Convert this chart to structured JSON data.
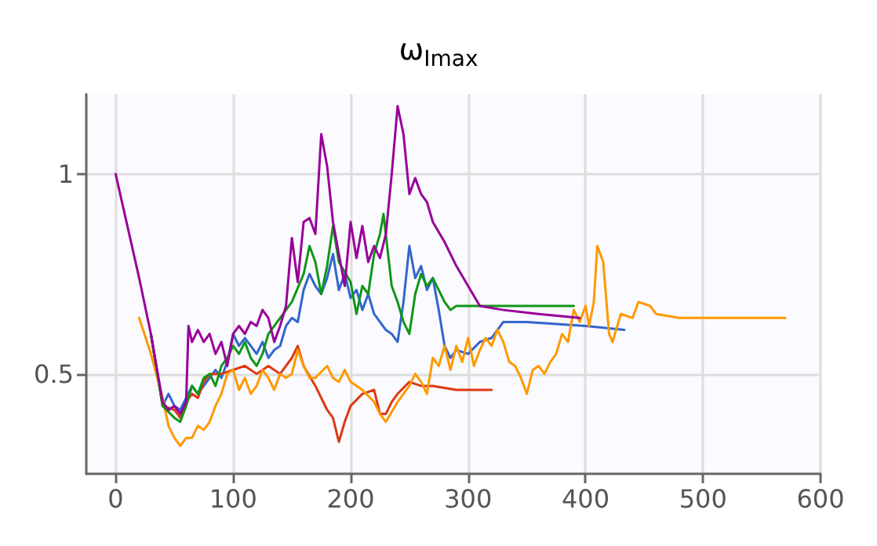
{
  "chart_data": {
    "type": "line",
    "title": "ω$_{Imax}$",
    "xlim": [
      -25,
      600
    ],
    "xticks": [
      0,
      100,
      200,
      300,
      400,
      500,
      600
    ],
    "ylim": [
      0.25,
      1.2
    ],
    "yticks": [
      0.5,
      1
    ],
    "grid": true,
    "marker": "none",
    "line_style": "solid",
    "series": [
      {
        "color": "#3366cc",
        "x": [
          30,
          40,
          45,
          50,
          55,
          60,
          65,
          70,
          75,
          80,
          85,
          90,
          95,
          100,
          105,
          110,
          115,
          120,
          125,
          130,
          135,
          140,
          145,
          150,
          155,
          160,
          165,
          170,
          175,
          180,
          185,
          190,
          195,
          200,
          205,
          210,
          215,
          220,
          225,
          230,
          235,
          240,
          245,
          250,
          255,
          260,
          265,
          270,
          275,
          280,
          285,
          290,
          300,
          310,
          320,
          330,
          350,
          400,
          433
        ],
        "values": [
          0.6,
          0.42,
          0.45,
          0.42,
          0.41,
          0.44,
          0.47,
          0.45,
          0.47,
          0.49,
          0.51,
          0.49,
          0.53,
          0.6,
          0.57,
          0.59,
          0.57,
          0.55,
          0.58,
          0.54,
          0.56,
          0.57,
          0.62,
          0.64,
          0.63,
          0.71,
          0.75,
          0.72,
          0.7,
          0.74,
          0.8,
          0.71,
          0.75,
          0.69,
          0.71,
          0.66,
          0.7,
          0.65,
          0.63,
          0.61,
          0.6,
          0.58,
          0.68,
          0.82,
          0.74,
          0.77,
          0.71,
          0.74,
          0.66,
          0.57,
          0.54,
          0.56,
          0.55,
          0.58,
          0.59,
          0.63,
          0.63,
          0.62,
          0.61
        ]
      },
      {
        "color": "#dc3912",
        "x": [
          30,
          40,
          50,
          55,
          60,
          65,
          70,
          75,
          80,
          90,
          100,
          110,
          120,
          130,
          140,
          150,
          155,
          160,
          170,
          180,
          185,
          190,
          195,
          200,
          210,
          220,
          225,
          230,
          235,
          240,
          250,
          260,
          270,
          290,
          320
        ],
        "values": [
          0.6,
          0.42,
          0.41,
          0.39,
          0.43,
          0.45,
          0.44,
          0.48,
          0.5,
          0.5,
          0.51,
          0.52,
          0.5,
          0.52,
          0.5,
          0.54,
          0.57,
          0.52,
          0.47,
          0.41,
          0.39,
          0.33,
          0.38,
          0.42,
          0.45,
          0.46,
          0.4,
          0.4,
          0.43,
          0.45,
          0.48,
          0.47,
          0.47,
          0.46,
          0.46
        ]
      },
      {
        "color": "#ff9900",
        "x": [
          20,
          30,
          40,
          45,
          50,
          55,
          60,
          65,
          70,
          75,
          80,
          85,
          90,
          95,
          100,
          105,
          110,
          115,
          120,
          125,
          130,
          135,
          140,
          145,
          150,
          155,
          160,
          165,
          170,
          180,
          185,
          190,
          195,
          200,
          210,
          220,
          225,
          230,
          240,
          250,
          255,
          260,
          265,
          270,
          275,
          280,
          285,
          290,
          295,
          300,
          305,
          310,
          315,
          320,
          325,
          330,
          335,
          340,
          345,
          350,
          355,
          360,
          365,
          370,
          375,
          380,
          385,
          390,
          395,
          400,
          403,
          407,
          410,
          415,
          420,
          423,
          430,
          440,
          445,
          455,
          460,
          480,
          570
        ],
        "values": [
          0.64,
          0.55,
          0.44,
          0.37,
          0.34,
          0.32,
          0.34,
          0.34,
          0.37,
          0.36,
          0.38,
          0.42,
          0.45,
          0.5,
          0.51,
          0.46,
          0.49,
          0.45,
          0.47,
          0.51,
          0.49,
          0.46,
          0.5,
          0.49,
          0.5,
          0.56,
          0.52,
          0.49,
          0.49,
          0.52,
          0.49,
          0.48,
          0.51,
          0.48,
          0.46,
          0.43,
          0.4,
          0.38,
          0.43,
          0.47,
          0.5,
          0.48,
          0.45,
          0.54,
          0.52,
          0.57,
          0.51,
          0.57,
          0.53,
          0.59,
          0.52,
          0.56,
          0.59,
          0.57,
          0.61,
          0.58,
          0.53,
          0.52,
          0.49,
          0.45,
          0.51,
          0.52,
          0.5,
          0.53,
          0.55,
          0.6,
          0.58,
          0.66,
          0.63,
          0.67,
          0.62,
          0.68,
          0.82,
          0.78,
          0.6,
          0.58,
          0.65,
          0.64,
          0.68,
          0.67,
          0.65,
          0.64,
          0.64
        ]
      },
      {
        "color": "#109618",
        "x": [
          30,
          40,
          50,
          55,
          60,
          65,
          70,
          75,
          80,
          85,
          90,
          95,
          100,
          105,
          110,
          115,
          120,
          125,
          130,
          140,
          145,
          150,
          160,
          165,
          170,
          175,
          180,
          185,
          190,
          200,
          205,
          210,
          215,
          220,
          225,
          228,
          235,
          240,
          245,
          250,
          255,
          260,
          265,
          270,
          275,
          280,
          285,
          290,
          300,
          330,
          390
        ],
        "values": [
          0.6,
          0.42,
          0.39,
          0.38,
          0.42,
          0.47,
          0.45,
          0.49,
          0.5,
          0.47,
          0.52,
          0.54,
          0.57,
          0.55,
          0.58,
          0.54,
          0.52,
          0.55,
          0.6,
          0.64,
          0.66,
          0.68,
          0.75,
          0.82,
          0.78,
          0.7,
          0.77,
          0.87,
          0.78,
          0.73,
          0.65,
          0.72,
          0.7,
          0.8,
          0.85,
          0.9,
          0.72,
          0.68,
          0.63,
          0.6,
          0.7,
          0.75,
          0.72,
          0.74,
          0.71,
          0.68,
          0.66,
          0.67,
          0.67,
          0.67,
          0.67
        ]
      },
      {
        "color": "#990099",
        "x": [
          0,
          10,
          20,
          30,
          40,
          45,
          50,
          55,
          60,
          62,
          65,
          70,
          75,
          80,
          85,
          90,
          95,
          100,
          105,
          110,
          115,
          120,
          125,
          130,
          135,
          140,
          145,
          150,
          155,
          160,
          165,
          170,
          175,
          180,
          185,
          190,
          195,
          200,
          205,
          210,
          215,
          220,
          225,
          230,
          235,
          240,
          245,
          250,
          255,
          260,
          265,
          270,
          280,
          290,
          300,
          310,
          330,
          360,
          395
        ],
        "values": [
          1,
          0.87,
          0.74,
          0.6,
          0.43,
          0.41,
          0.42,
          0.4,
          0.43,
          0.62,
          0.58,
          0.61,
          0.58,
          0.6,
          0.55,
          0.58,
          0.52,
          0.6,
          0.62,
          0.6,
          0.63,
          0.62,
          0.66,
          0.64,
          0.58,
          0.62,
          0.67,
          0.84,
          0.73,
          0.88,
          0.89,
          0.85,
          1.1,
          1.02,
          0.88,
          0.8,
          0.72,
          0.88,
          0.79,
          0.87,
          0.78,
          0.82,
          0.79,
          0.85,
          1,
          1.17,
          1.1,
          0.95,
          0.99,
          0.95,
          0.93,
          0.88,
          0.83,
          0.77,
          0.72,
          0.67,
          0.66,
          0.65,
          0.64
        ]
      }
    ]
  }
}
